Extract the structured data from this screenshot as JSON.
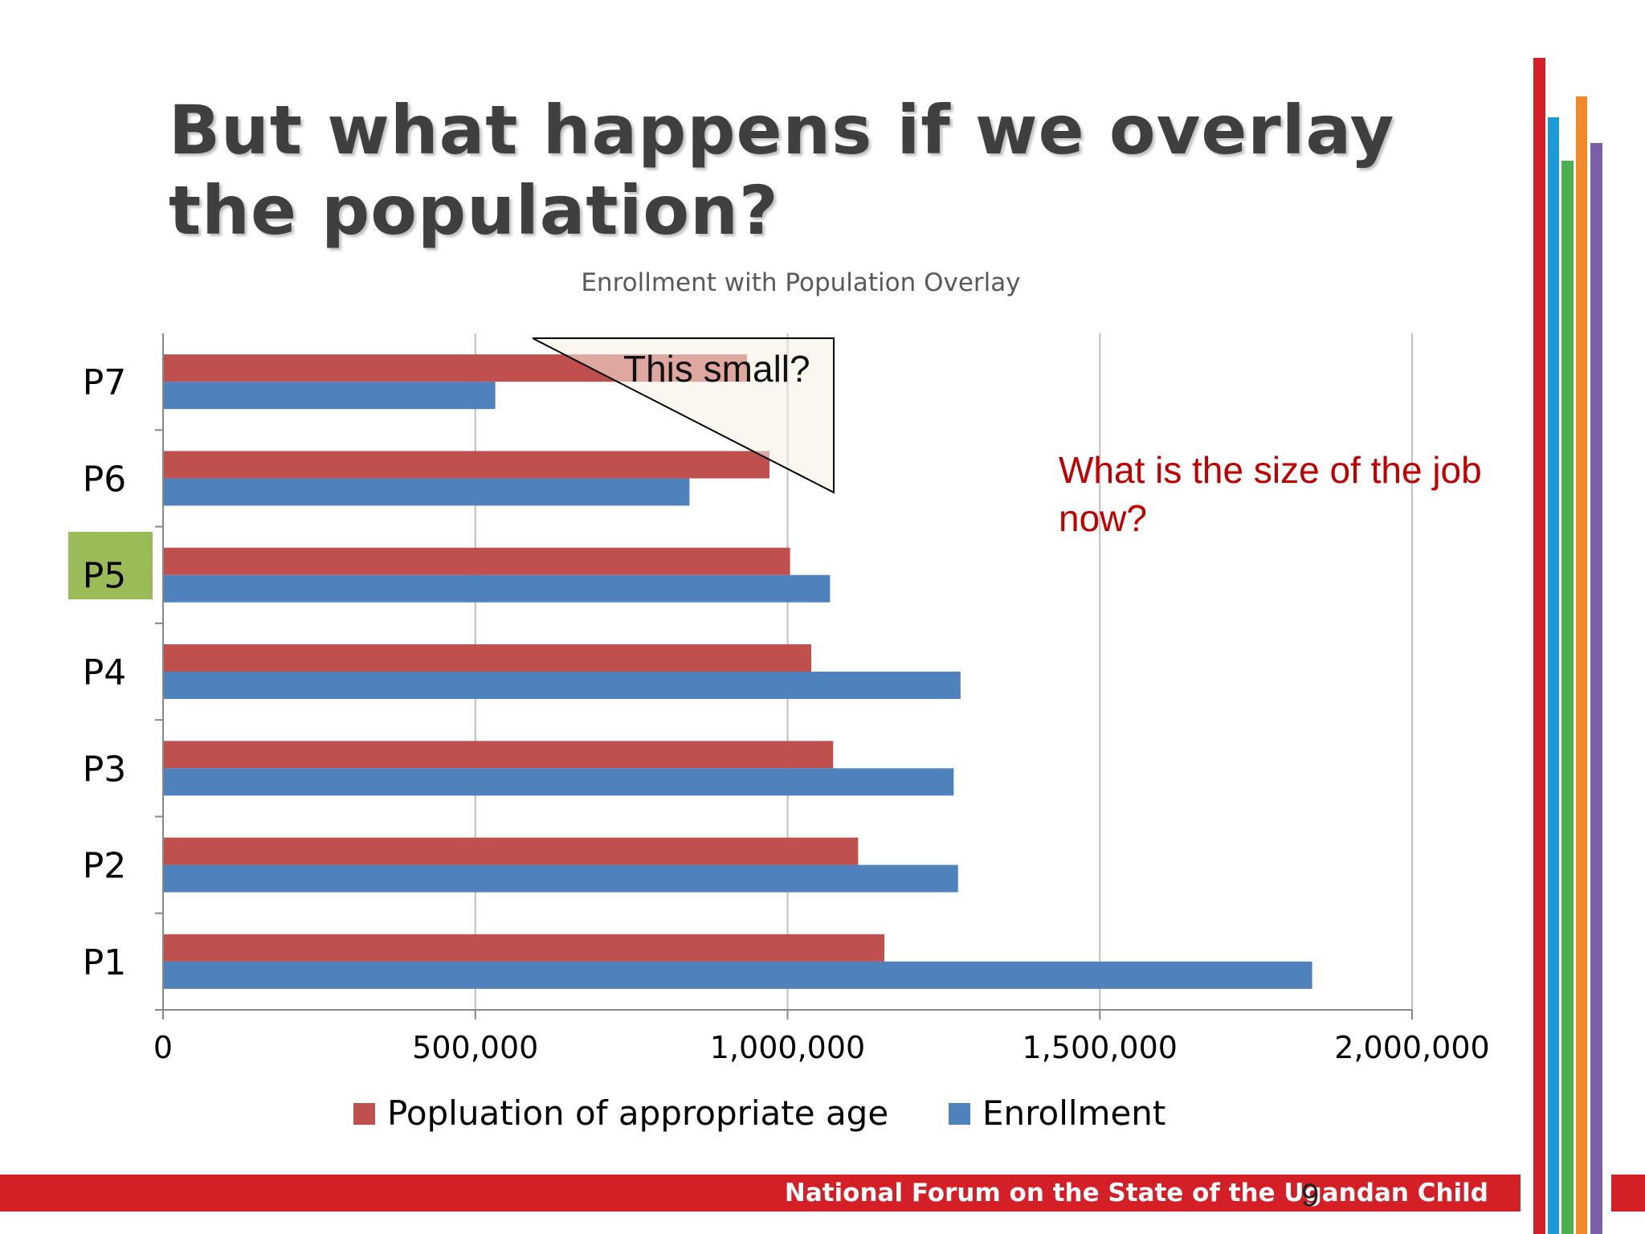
{
  "slide": {
    "title": "But what happens if we overlay the population?",
    "callout": "What is the size of the job now?",
    "bubble": "This small?",
    "footer": "National Forum on the State of the Ugandan Child",
    "page_number": "9",
    "highlighted_category": "P5",
    "stripe_colors": [
      "#d41f27",
      "#1a9ad6",
      "#4caf50",
      "#f0892a",
      "#7b5ea7"
    ]
  },
  "chart_data": {
    "type": "bar",
    "orientation": "horizontal",
    "title": "Enrollment with Population Overlay",
    "categories": [
      "P1",
      "P2",
      "P3",
      "P4",
      "P5",
      "P6",
      "P7"
    ],
    "series": [
      {
        "name": "Popluation of appropriate age",
        "color": "#c0504d",
        "values": [
          1155000,
          1113000,
          1073000,
          1038000,
          1004000,
          971000,
          935000
        ]
      },
      {
        "name": "Enrollment",
        "color": "#4f81bd",
        "values": [
          1840000,
          1273000,
          1266000,
          1277000,
          1068000,
          843000,
          532000
        ]
      }
    ],
    "xlim": [
      0,
      2000000
    ],
    "xticks": [
      0,
      500000,
      1000000,
      1500000,
      2000000
    ],
    "xtick_labels": [
      "0",
      "500,000",
      "1,000,000",
      "1,500,000",
      "2,000,000"
    ],
    "grid": true,
    "legend_position": "bottom"
  }
}
